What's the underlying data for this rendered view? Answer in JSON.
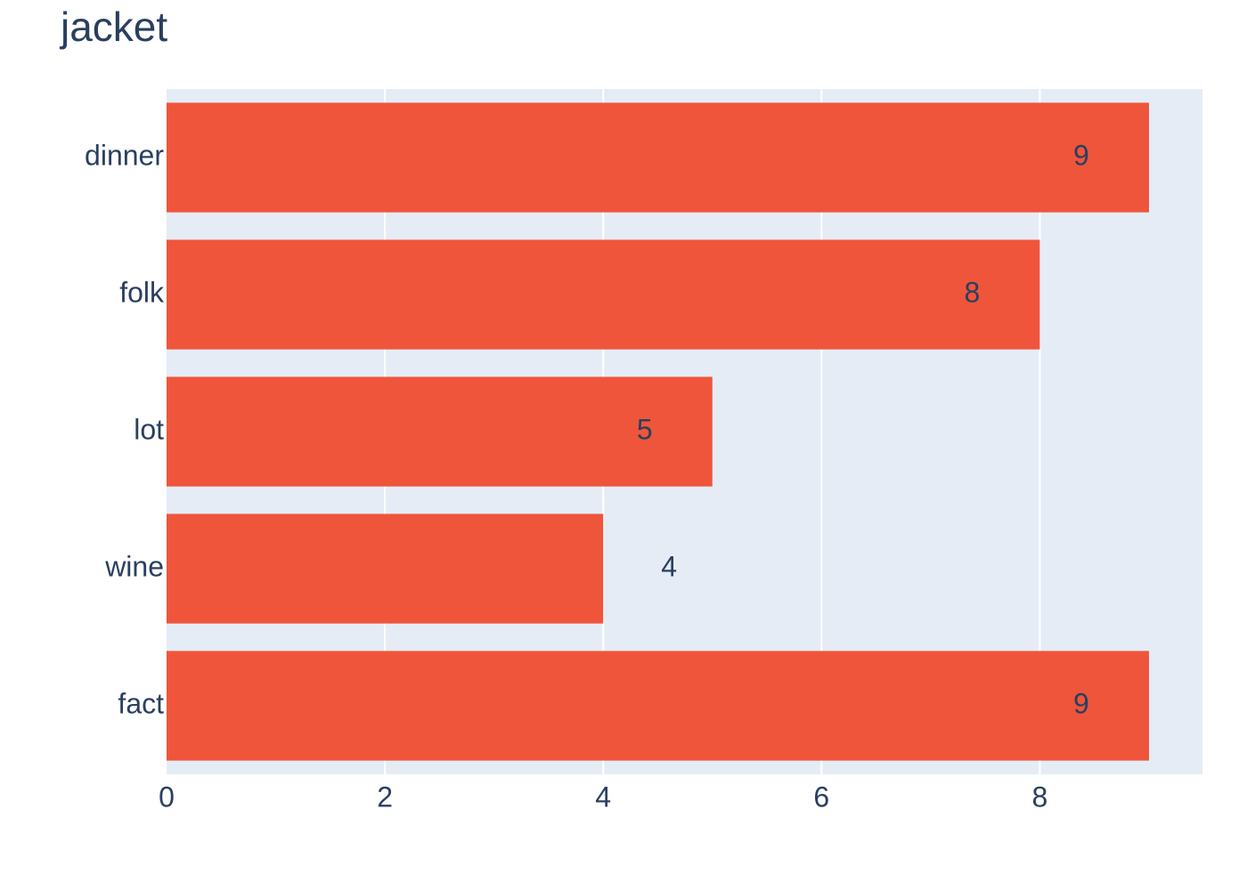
{
  "chart_data": {
    "type": "bar",
    "orientation": "horizontal",
    "title": "jacket",
    "categories": [
      "dinner",
      "folk",
      "lot",
      "wine",
      "fact"
    ],
    "values": [
      9,
      8,
      5,
      4,
      9
    ],
    "color": "#ef553b",
    "xlim": [
      0,
      9.49
    ],
    "xticks": [
      0,
      2,
      4,
      6,
      8
    ],
    "grid": true
  }
}
